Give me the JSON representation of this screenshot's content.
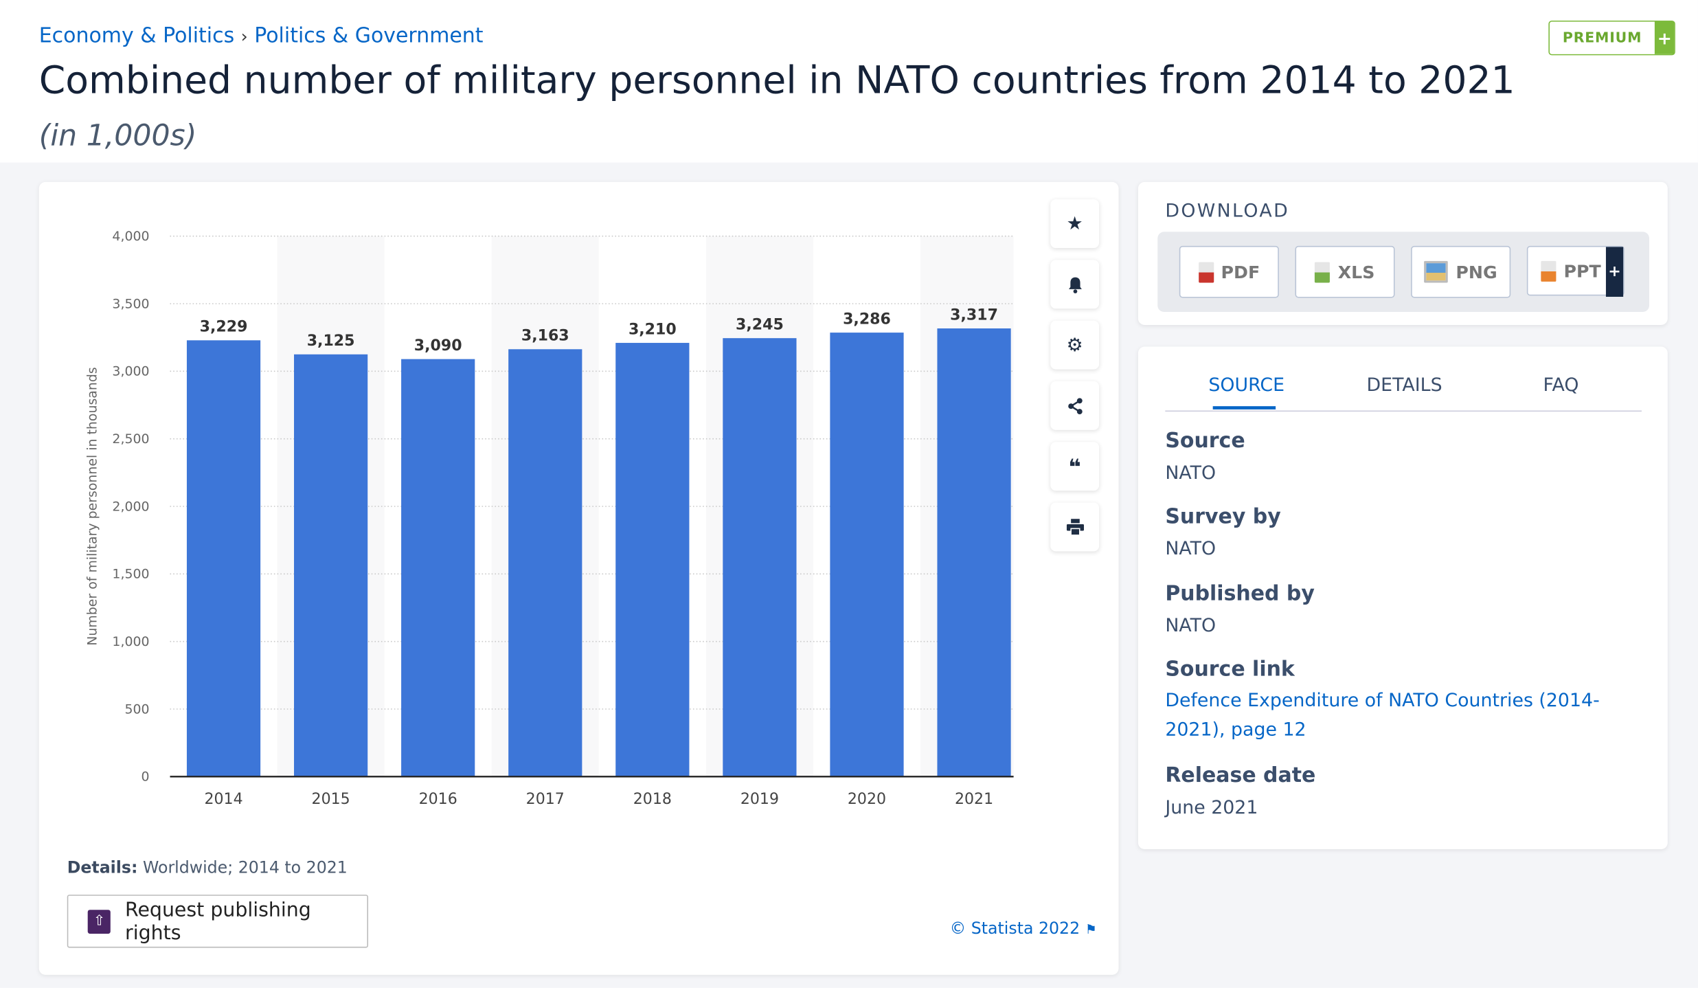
{
  "breadcrumb": [
    "Economy & Politics",
    "Politics & Government"
  ],
  "breadcrumb_separator": "›",
  "title": "Combined number of military personnel in NATO countries from 2014 to 2021",
  "subtitle": "(in 1,000s)",
  "premium": {
    "label": "PREMIUM",
    "plus": "+"
  },
  "chart_data": {
    "type": "bar",
    "categories": [
      "2014",
      "2015",
      "2016",
      "2017",
      "2018",
      "2019",
      "2020",
      "2021"
    ],
    "values": [
      3229,
      3125,
      3090,
      3163,
      3210,
      3245,
      3286,
      3317
    ],
    "value_labels": [
      "3,229",
      "3,125",
      "3,090",
      "3,163",
      "3,210",
      "3,245",
      "3,286",
      "3,317"
    ],
    "ylabel": "Number of military personnel in thousands",
    "ylim": [
      0,
      4000
    ],
    "yticks": [
      "0",
      "500",
      "1,000",
      "1,500",
      "2,000",
      "2,500",
      "3,000",
      "3,500",
      "4,000"
    ],
    "grid": true,
    "bar_color": "#3d76d8"
  },
  "tools": [
    "star-icon",
    "bell-icon",
    "gear-icon",
    "share-icon",
    "quote-icon",
    "print-icon"
  ],
  "details": {
    "label": "Details:",
    "text": "Worldwide; 2014 to 2021"
  },
  "request_button": "Request publishing rights",
  "copyright": "© Statista 2022",
  "download": {
    "heading": "DOWNLOAD",
    "buttons": [
      "PDF",
      "XLS",
      "PNG",
      "PPT"
    ],
    "ppt_plus": "+"
  },
  "source_panel": {
    "tabs": [
      "SOURCE",
      "DETAILS",
      "FAQ"
    ],
    "source_label": "Source",
    "source": "NATO",
    "survey_label": "Survey by",
    "survey": "NATO",
    "published_label": "Published by",
    "published": "NATO",
    "link_label": "Source link",
    "link": "Defence Expenditure of NATO Countries (2014-2021), page 12",
    "release_label": "Release date",
    "release": "June 2021"
  }
}
